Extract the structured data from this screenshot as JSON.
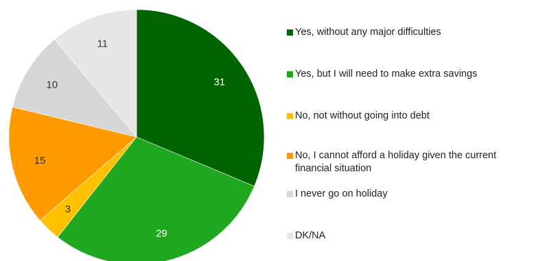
{
  "chart_data": {
    "type": "pie",
    "title": "",
    "start_angle_deg": 0,
    "direction": "clockwise",
    "slices": [
      {
        "label": "Yes, without any major difficulties",
        "value": 31,
        "color": "#006400"
      },
      {
        "label": "Yes, but I will need to make extra savings",
        "value": 29,
        "color": "#1FA81F"
      },
      {
        "label": "No, not without going into debt",
        "value": 3,
        "color": "#FFC000"
      },
      {
        "label": "No, I cannot afford a holiday given the current financial situation",
        "value": 15,
        "color": "#FF9A00"
      },
      {
        "label": "I never go on holiday",
        "value": 10,
        "color": "#D6D6D6"
      },
      {
        "label": "DK/NA",
        "value": 11,
        "color": "#E6E6E6"
      }
    ],
    "data_label_colors": [
      "#ffffff",
      "#ffffff",
      "#333333",
      "#333333",
      "#333333",
      "#333333"
    ],
    "legend_placement": "right"
  }
}
